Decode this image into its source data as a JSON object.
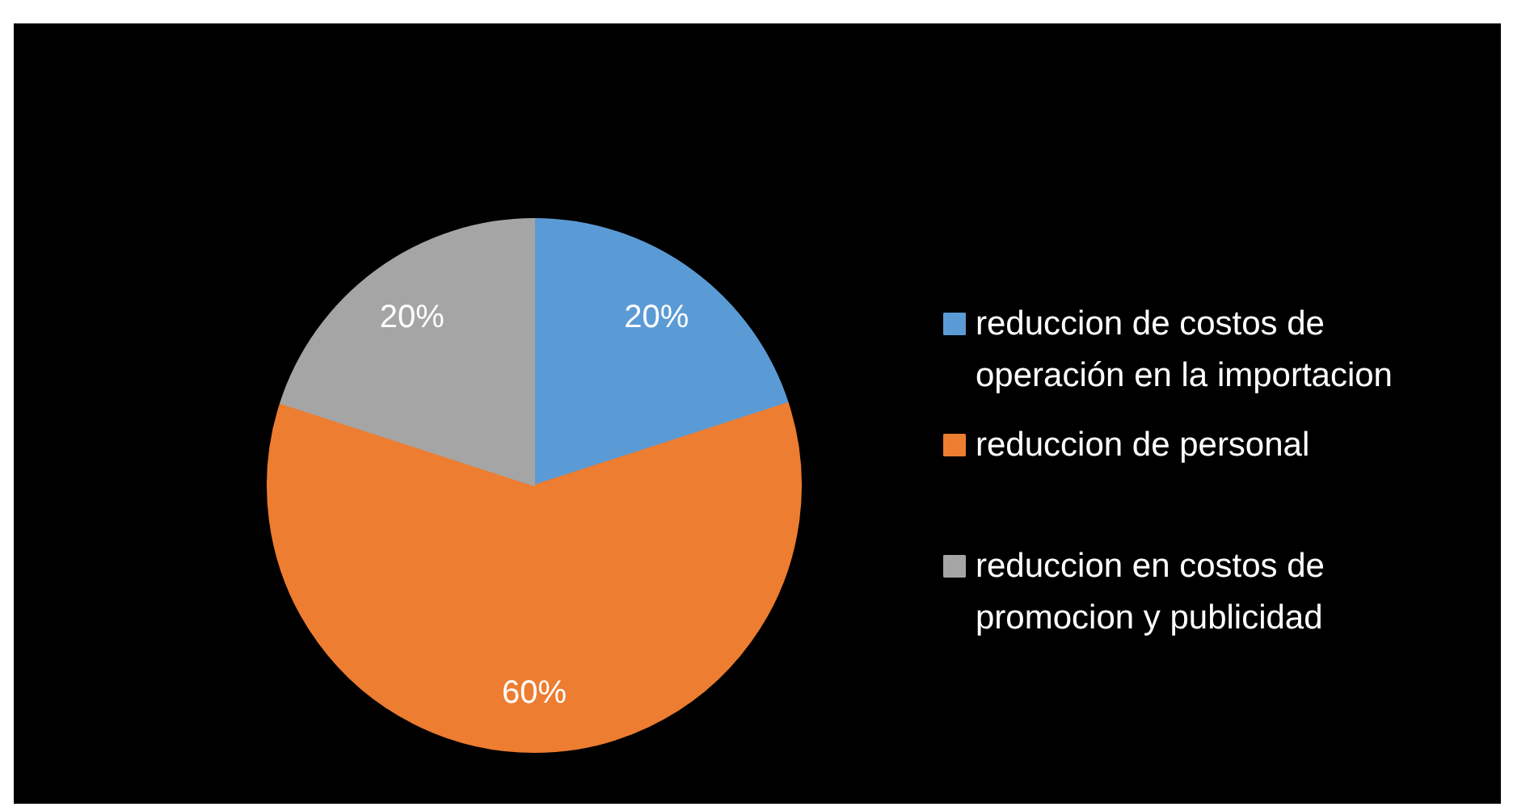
{
  "chart_data": {
    "type": "pie",
    "categories": [
      "reduccion de costos de operación en la importacion",
      "reduccion de personal",
      "reduccion en costos de promocion y publicidad"
    ],
    "values": [
      20,
      60,
      20
    ],
    "colors": [
      "#5b9bd5",
      "#ed7d31",
      "#a5a5a5"
    ],
    "value_labels": [
      "20%",
      "60%",
      "20%"
    ],
    "legend": "right"
  }
}
